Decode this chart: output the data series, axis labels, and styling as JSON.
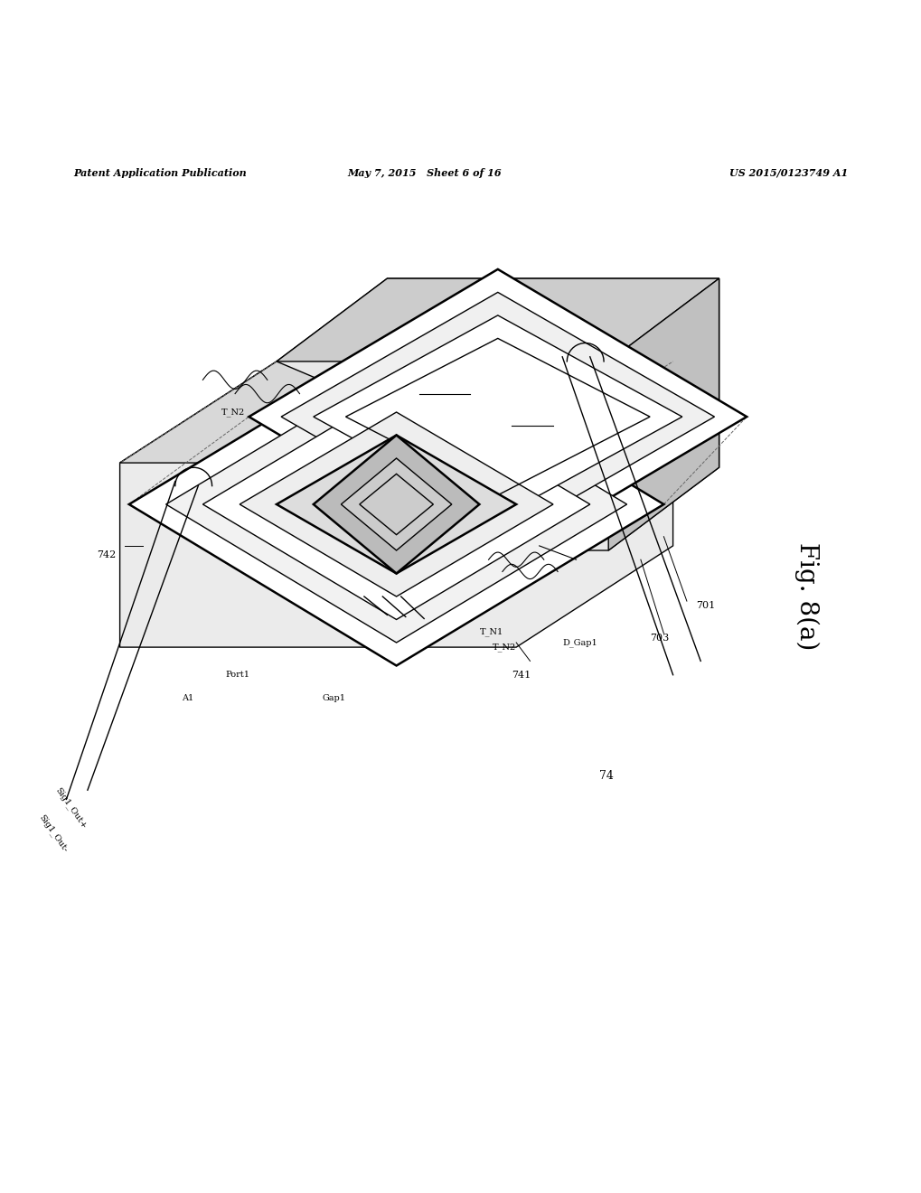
{
  "background_color": "#ffffff",
  "header_left": "Patent Application Publication",
  "header_mid": "May 7, 2015   Sheet 6 of 16",
  "header_right": "US 2015/0123749 A1",
  "fig_label": "Fig. 8(a)",
  "fig_number": "74"
}
